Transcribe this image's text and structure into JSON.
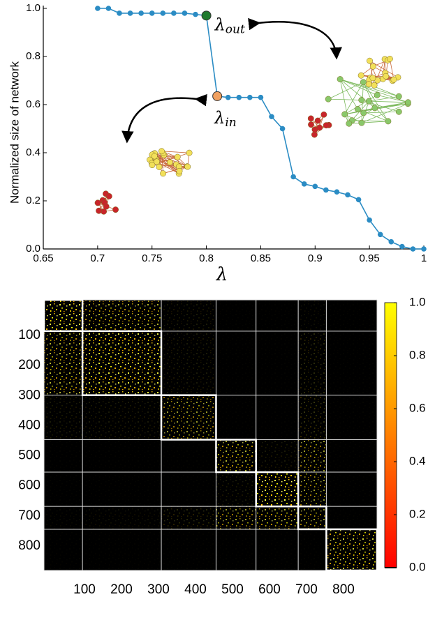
{
  "chart_data": [
    {
      "type": "line",
      "xlabel": "λ",
      "ylabel": "Normalized size of network",
      "x": [
        0.7,
        0.71,
        0.72,
        0.73,
        0.74,
        0.75,
        0.76,
        0.77,
        0.78,
        0.79,
        0.8,
        0.81,
        0.82,
        0.83,
        0.84,
        0.85,
        0.86,
        0.87,
        0.88,
        0.89,
        0.9,
        0.91,
        0.92,
        0.93,
        0.94,
        0.95,
        0.96,
        0.97,
        0.98,
        0.99,
        1.0
      ],
      "series": [
        {
          "color": "#2b8cc4",
          "values": [
            1.0,
            1.0,
            0.98,
            0.98,
            0.98,
            0.98,
            0.98,
            0.98,
            0.98,
            0.975,
            0.97,
            0.635,
            0.63,
            0.63,
            0.63,
            0.63,
            0.55,
            0.5,
            0.3,
            0.27,
            0.26,
            0.245,
            0.237,
            0.225,
            0.205,
            0.12,
            0.06,
            0.03,
            0.01,
            0.0,
            0.0
          ]
        }
      ],
      "annotations": [
        {
          "text": "λ",
          "subscript": "out",
          "x": 0.8,
          "marker_color": "#1f7a2e",
          "placement": "right"
        },
        {
          "text": "λ",
          "subscript": "in",
          "x": 0.81,
          "marker_color": "#f0a060",
          "placement": "below"
        }
      ],
      "xlim": [
        0.65,
        1.0
      ],
      "ylim": [
        0,
        1
      ],
      "xticks": [
        0.65,
        0.7,
        0.75,
        0.8,
        0.85,
        0.9,
        0.95,
        1
      ],
      "yticks": [
        {
          "value": 0,
          "label": "0.0"
        },
        {
          "value": 0.2,
          "label": "0.2"
        },
        {
          "value": 0.4,
          "label": "0.4"
        },
        {
          "value": 0.6,
          "label": "0.6"
        },
        {
          "value": 0.8,
          "label": "0.8"
        },
        {
          "value": 1,
          "label": "1.0"
        }
      ]
    },
    {
      "type": "heatmap",
      "boundaries": [
        0,
        104,
        317,
        465,
        573,
        687,
        763,
        900
      ],
      "density": [
        [
          0.5,
          0.35,
          0.05,
          0.01,
          0.01,
          0.03,
          0.01
        ],
        [
          0.35,
          0.45,
          0.05,
          0.01,
          0.01,
          0.08,
          0.01
        ],
        [
          0.05,
          0.05,
          0.3,
          0.01,
          0.01,
          0.1,
          0.01
        ],
        [
          0.01,
          0.01,
          0.01,
          0.35,
          0.05,
          0.3,
          0.01
        ],
        [
          0.01,
          0.01,
          0.01,
          0.05,
          0.5,
          0.3,
          0.01
        ],
        [
          0.02,
          0.03,
          0.08,
          0.3,
          0.35,
          0.3,
          0.01
        ],
        [
          0.01,
          0.01,
          0.01,
          0.01,
          0.01,
          0.01,
          0.4
        ]
      ],
      "xlim": [
        0,
        900
      ],
      "ylim": [
        0,
        900
      ],
      "xticks": [
        100,
        200,
        300,
        400,
        500,
        600,
        700,
        800
      ],
      "yticks": [
        100,
        200,
        300,
        400,
        500,
        600,
        700,
        800
      ],
      "colormap": [
        "#ff0000",
        "#ffff00"
      ],
      "clim": [
        0,
        1
      ],
      "cticks": [
        {
          "value": 0,
          "label": "0.0"
        },
        {
          "value": 0.2,
          "label": "0.2"
        },
        {
          "value": 0.4,
          "label": "0.4"
        },
        {
          "value": 0.6,
          "label": "0.6"
        },
        {
          "value": 0.8,
          "label": "0.8"
        },
        {
          "value": 1,
          "label": "1.0"
        }
      ]
    }
  ]
}
